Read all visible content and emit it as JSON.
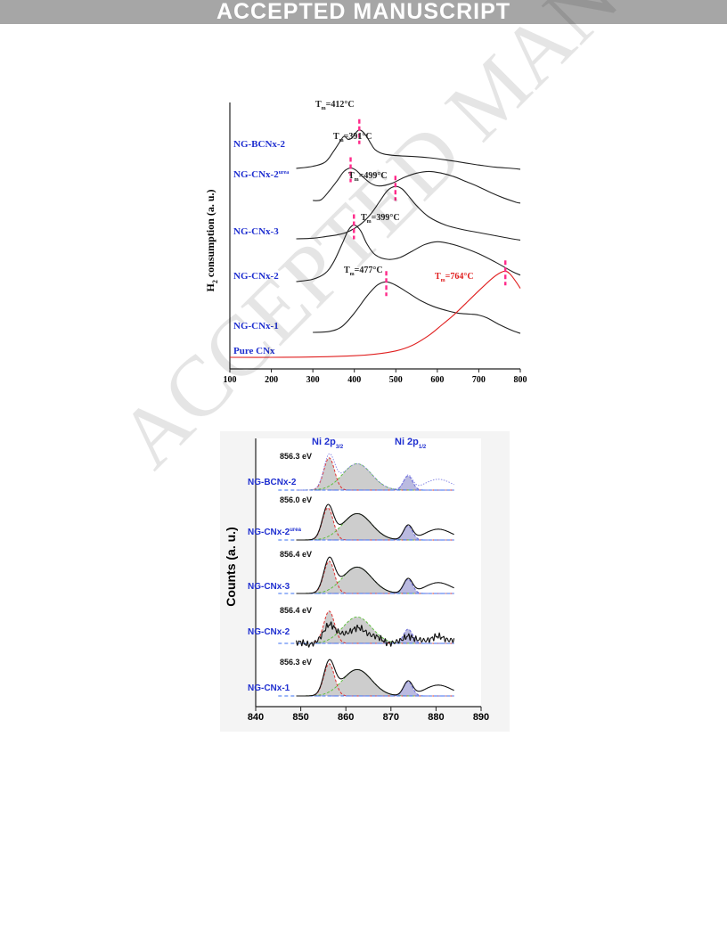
{
  "banner": {
    "text": "ACCEPTED MANUSCRIPT"
  },
  "watermark": {
    "text": "ACCEPTED MANUSCRIPT"
  },
  "chart_data": [
    {
      "type": "line",
      "ylabel": "H2 consumption (a. u.)",
      "xlabel": "",
      "xlim": [
        100,
        800
      ],
      "xticks": [
        100,
        200,
        300,
        400,
        500,
        600,
        700,
        800
      ],
      "colors": {
        "sample_label": "#1f2fd0",
        "curve": "#222222",
        "pure_curve": "#e01f1f",
        "marker": "#ff2a8a"
      },
      "series": [
        {
          "name": "NG-BCNx-2",
          "color": "#222222",
          "peaks": [
            {
              "label": "Tm=412°C",
              "x": 412
            }
          ],
          "x": [
            260,
            300,
            330,
            350,
            365,
            375,
            385,
            395,
            405,
            412,
            420,
            430,
            440,
            450,
            470,
            500,
            540,
            580,
            620,
            660,
            700,
            740,
            780,
            800
          ],
          "y": [
            0.0,
            0.05,
            0.15,
            0.4,
            0.62,
            0.75,
            0.68,
            0.72,
            0.85,
            0.9,
            0.86,
            0.74,
            0.58,
            0.44,
            0.34,
            0.3,
            0.28,
            0.25,
            0.2,
            0.14,
            0.08,
            0.03,
            0.0,
            -0.02
          ]
        },
        {
          "name": "NG-CNx-2",
          "sup": "urea",
          "color": "#222222",
          "peaks": [
            {
              "label": "Tm=391°C",
              "x": 391
            }
          ],
          "x": [
            300,
            320,
            340,
            360,
            375,
            391,
            405,
            420,
            440,
            460,
            490,
            520,
            550,
            580,
            610,
            640,
            670,
            700,
            730,
            760,
            790,
            800
          ],
          "y": [
            0.02,
            0.04,
            0.25,
            0.5,
            0.7,
            0.78,
            0.72,
            0.58,
            0.42,
            0.36,
            0.42,
            0.56,
            0.66,
            0.7,
            0.66,
            0.58,
            0.46,
            0.34,
            0.2,
            0.08,
            -0.02,
            -0.04
          ]
        },
        {
          "name": "NG-CNx-3",
          "color": "#222222",
          "peaks": [
            {
              "label": "Tm=499°C",
              "x": 499
            }
          ],
          "x": [
            260,
            300,
            330,
            360,
            380,
            400,
            420,
            440,
            460,
            480,
            499,
            515,
            530,
            550,
            580,
            620,
            660,
            700,
            740,
            780,
            800
          ],
          "y": [
            0.0,
            0.02,
            0.07,
            0.13,
            0.2,
            0.33,
            0.52,
            0.8,
            1.18,
            1.55,
            1.68,
            1.6,
            1.38,
            1.06,
            0.7,
            0.44,
            0.3,
            0.2,
            0.1,
            0.0,
            -0.04
          ]
        },
        {
          "name": "NG-CNx-2",
          "color": "#222222",
          "peaks": [
            {
              "label": "Tm=399°C",
              "x": 399
            }
          ],
          "x": [
            260,
            300,
            330,
            350,
            370,
            385,
            399,
            415,
            430,
            450,
            480,
            510,
            540,
            570,
            600,
            630,
            660,
            700,
            740,
            780,
            800
          ],
          "y": [
            0.0,
            0.05,
            0.18,
            0.42,
            0.8,
            1.1,
            1.22,
            1.1,
            0.82,
            0.58,
            0.48,
            0.52,
            0.66,
            0.8,
            0.86,
            0.82,
            0.74,
            0.6,
            0.42,
            0.22,
            0.14
          ]
        },
        {
          "name": "NG-CNx-1",
          "color": "#222222",
          "peaks": [
            {
              "label": "Tm=477°C",
              "x": 477
            }
          ],
          "x": [
            300,
            340,
            370,
            400,
            430,
            455,
            477,
            500,
            530,
            560,
            590,
            620,
            650,
            680,
            700,
            720,
            750,
            780,
            800
          ],
          "y": [
            0.0,
            0.02,
            0.12,
            0.4,
            0.75,
            0.98,
            1.05,
            0.98,
            0.82,
            0.66,
            0.54,
            0.46,
            0.4,
            0.38,
            0.36,
            0.3,
            0.16,
            0.04,
            -0.02
          ]
        },
        {
          "name": "Pure CNx",
          "color": "#e01f1f",
          "peaks": [
            {
              "label": "Tm=764°C",
              "x": 764
            }
          ],
          "x": [
            100,
            200,
            300,
            400,
            450,
            500,
            540,
            580,
            610,
            640,
            670,
            700,
            730,
            750,
            764,
            775,
            790,
            800
          ],
          "y": [
            0.0,
            0.0,
            0.01,
            0.04,
            0.08,
            0.16,
            0.3,
            0.55,
            0.8,
            1.06,
            1.36,
            1.66,
            1.95,
            2.1,
            2.15,
            2.08,
            1.88,
            1.72
          ]
        }
      ]
    },
    {
      "type": "line",
      "ylabel": "Counts (a. u.)",
      "xlabel": "",
      "xlim": [
        840,
        890
      ],
      "xticks": [
        840,
        850,
        860,
        870,
        880,
        890
      ],
      "annotations": [
        {
          "main": "Ni 2p",
          "sub": "3/2",
          "x": 856.3
        },
        {
          "main": "Ni 2p",
          "sub": "1/2",
          "x": 874.0
        }
      ],
      "colors": {
        "sample_label": "#1f2fd0",
        "curve": "#111111",
        "fit_red": "#e03030",
        "fit_green": "#5fbf3f",
        "fit_blue": "#6a6ad8",
        "baseline": "#3a6ff0",
        "fill": "#c4c4c4"
      },
      "series": [
        {
          "name": "NG-BCNx-2",
          "be": "856.3 eV",
          "style": "dotted",
          "color": "#8a8ae6"
        },
        {
          "name": "NG-CNx-2",
          "sup": "urea",
          "be": "856.0 eV",
          "style": "solid",
          "color": "#111111"
        },
        {
          "name": "NG-CNx-3",
          "be": "856.4 eV",
          "style": "solid",
          "color": "#111111"
        },
        {
          "name": "NG-CNx-2",
          "be": "856.4 eV",
          "style": "noisy",
          "color": "#111111"
        },
        {
          "name": "NG-CNx-1",
          "be": "856.3 eV",
          "style": "solid",
          "color": "#111111"
        }
      ]
    }
  ]
}
